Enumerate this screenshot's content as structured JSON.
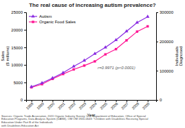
{
  "chart_data": {
    "type": "line",
    "title": "The real cause of increasing autism prevalence?",
    "xlabel": "Year",
    "ylabel": "Sales\n($ millions)",
    "y2label": "Individuals\nDiagnosed",
    "annotation": "r=0.9971 (p<0.0001)",
    "source": "Sources: Organic Trade Association, 2011 Organic Industry Survey; U.S. Department of Education, Office of Special\nEducation Programs, Data Analysis System (DANS), OM OM 1920-0643: *Children with Disabilities Receiving Special\nEducation Under Part B of the Individuals\nwith Disabilities Education Act",
    "x": [
      1998,
      1999,
      2000,
      2001,
      2002,
      2003,
      2004,
      2005,
      2006,
      2007,
      2008,
      2009
    ],
    "xlim": [
      1997.5,
      2009.8
    ],
    "xticks": [
      1998,
      1999,
      2000,
      2001,
      2002,
      2003,
      2004,
      2005,
      2006,
      2007,
      2008,
      2009
    ],
    "ylim": [
      0,
      25000
    ],
    "yticks": [
      0,
      5000,
      10000,
      15000,
      20000,
      25000
    ],
    "y2lim": [
      0,
      300000
    ],
    "y2ticks": [
      0,
      100000,
      200000,
      300000
    ],
    "grid": false,
    "legend": "upper left",
    "series": [
      {
        "name": "Organic Food Sales",
        "color": "#FF1493",
        "marker": "square",
        "values": [
          3600,
          4500,
          6000,
          7400,
          8700,
          9800,
          11000,
          13000,
          14500,
          17000,
          19500,
          21000
        ]
      },
      {
        "name": "Autism",
        "color": "#8A2BE2",
        "marker": "triangle",
        "axis": "y2",
        "values": [
          45000,
          58000,
          75000,
          93000,
          115000,
          135000,
          158000,
          180000,
          205000,
          235000,
          265000,
          285000
        ]
      }
    ]
  }
}
